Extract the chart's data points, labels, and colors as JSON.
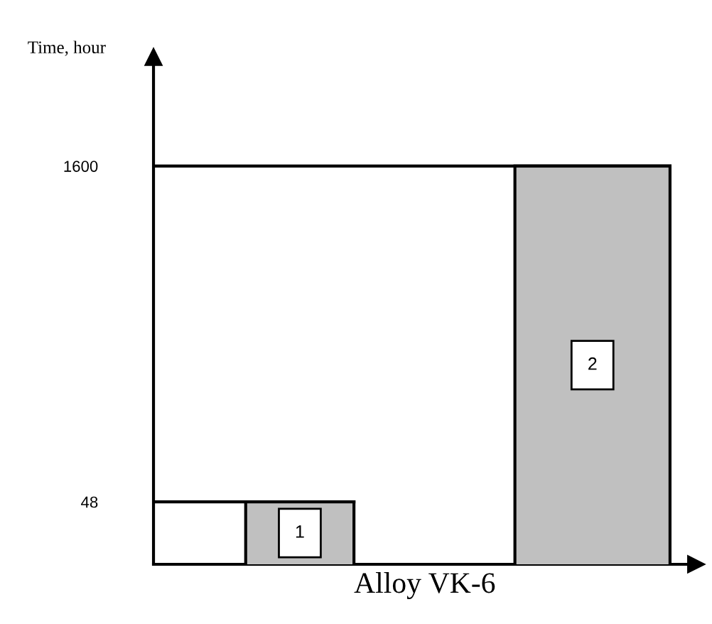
{
  "chart_data": {
    "type": "bar",
    "xlabel": "Alloy VK-6",
    "ylabel": "Time, hour",
    "categories": [
      "1",
      "2"
    ],
    "values": [
      48,
      1600
    ],
    "color": "#c0c0c0",
    "log": "y",
    "ylim": [
      25,
      5000
    ],
    "yticks": [
      48,
      1600
    ],
    "ref_lines": [
      {
        "axis": "y",
        "value": 48
      },
      {
        "axis": "y",
        "value": 1600
      }
    ]
  }
}
